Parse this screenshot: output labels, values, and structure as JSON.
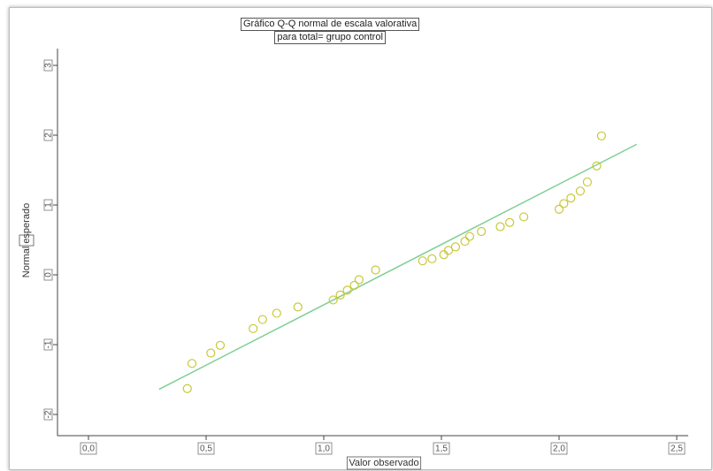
{
  "chart_data": {
    "type": "scatter",
    "title_lines": [
      "Gráfico Q-Q normal de escala valorativa",
      "para total= grupo control"
    ],
    "xlabel": "Valor observado",
    "ylabel": "Normal esperado",
    "xlim": [
      0.0,
      2.5
    ],
    "ylim": [
      -2.0,
      3.0
    ],
    "xticks": [
      "0,0",
      "0,5",
      "1,0",
      "1,5",
      "2,0",
      "2,5"
    ],
    "yticks": [
      "3",
      "2",
      "1",
      "0",
      "-1",
      "-2"
    ],
    "grid": false,
    "colors": {
      "points": "#c8c83a",
      "line": "#7fcf95",
      "axis": "#444444"
    },
    "reference_line": {
      "x": [
        0.3,
        2.33
      ],
      "y": [
        -1.64,
        1.87
      ]
    },
    "points": [
      {
        "x": 0.42,
        "y": -1.63
      },
      {
        "x": 0.44,
        "y": -1.27
      },
      {
        "x": 0.52,
        "y": -1.12
      },
      {
        "x": 0.56,
        "y": -1.01
      },
      {
        "x": 0.7,
        "y": -0.77
      },
      {
        "x": 0.74,
        "y": -0.64
      },
      {
        "x": 0.8,
        "y": -0.55
      },
      {
        "x": 0.89,
        "y": -0.46
      },
      {
        "x": 1.04,
        "y": -0.36
      },
      {
        "x": 1.07,
        "y": -0.29
      },
      {
        "x": 1.1,
        "y": -0.22
      },
      {
        "x": 1.13,
        "y": -0.15
      },
      {
        "x": 1.15,
        "y": -0.07
      },
      {
        "x": 1.22,
        "y": 0.07
      },
      {
        "x": 1.42,
        "y": 0.2
      },
      {
        "x": 1.46,
        "y": 0.23
      },
      {
        "x": 1.51,
        "y": 0.29
      },
      {
        "x": 1.53,
        "y": 0.35
      },
      {
        "x": 1.56,
        "y": 0.4
      },
      {
        "x": 1.6,
        "y": 0.48
      },
      {
        "x": 1.62,
        "y": 0.55
      },
      {
        "x": 1.67,
        "y": 0.62
      },
      {
        "x": 1.75,
        "y": 0.69
      },
      {
        "x": 1.79,
        "y": 0.75
      },
      {
        "x": 1.85,
        "y": 0.83
      },
      {
        "x": 2.0,
        "y": 0.94
      },
      {
        "x": 2.02,
        "y": 1.02
      },
      {
        "x": 2.05,
        "y": 1.1
      },
      {
        "x": 2.09,
        "y": 1.2
      },
      {
        "x": 2.12,
        "y": 1.33
      },
      {
        "x": 2.16,
        "y": 1.56
      },
      {
        "x": 2.18,
        "y": 1.99
      }
    ]
  }
}
